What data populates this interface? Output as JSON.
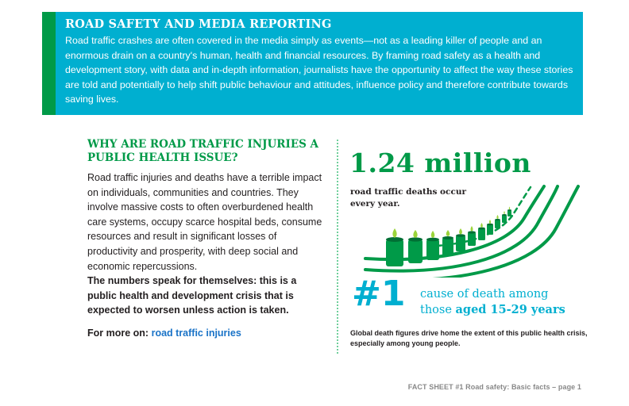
{
  "banner": {
    "title": "ROAD SAFETY AND MEDIA REPORTING",
    "body": "Road traffic crashes are often covered in the media simply as events—not as a leading killer of people and an enormous drain on a country's human, health and financial resources. By framing road safety as a health and development story, with data and in-depth information, journalists have the opportunity to affect the way these stories are told and potentially to help shift public behaviour and attitudes, influence policy and therefore contribute towards saving lives."
  },
  "section": {
    "heading": "Why are road traffic injuries a public health issue?",
    "body": "Road traffic injuries and deaths have a terrible impact on individuals, communities and countries. They involve massive costs to often overburdened health care systems, occupy scarce hospital beds, consume resources and result in significant losses of productivity and prosperity, with deep social and economic repercussions.",
    "bold": "The numbers speak for themselves: this is a public health and development crisis that is expected to worsen unless action is taken.",
    "more_prefix": "For more on:",
    "more_link": "road traffic injuries"
  },
  "infographic": {
    "stat": "1.24 million",
    "stat_caption": "road traffic deaths occur every year.",
    "rank": "#1",
    "rank_line1": "cause of death among",
    "rank_line2_prefix": "those ",
    "rank_line2_bold": "aged 15-29 years",
    "note": "Global death figures drive home the extent of this public health crisis, especially among young people.",
    "colors": {
      "green": "#009a48",
      "teal": "#00afd0",
      "flame": "#9bd43a"
    }
  },
  "footer": "FACT SHEET #1 Road safety: Basic facts – page 1"
}
